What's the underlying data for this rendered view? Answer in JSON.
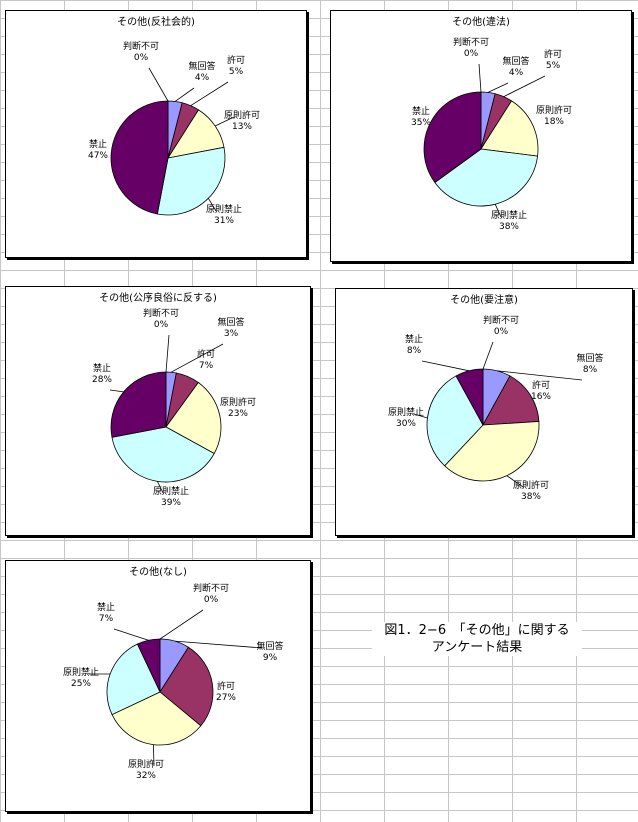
{
  "chart_data": [
    {
      "type": "pie",
      "title": "その他(反社会的)",
      "slices": [
        {
          "label": "判断不可",
          "value": 0,
          "pct": "0%"
        },
        {
          "label": "無回答",
          "value": 4,
          "pct": "4%"
        },
        {
          "label": "許可",
          "value": 5,
          "pct": "5%"
        },
        {
          "label": "原則許可",
          "value": 13,
          "pct": "13%"
        },
        {
          "label": "原則禁止",
          "value": 31,
          "pct": "31%"
        },
        {
          "label": "禁止",
          "value": 47,
          "pct": "47%"
        }
      ]
    },
    {
      "type": "pie",
      "title": "その他(違法)",
      "slices": [
        {
          "label": "判断不可",
          "value": 0,
          "pct": "0%"
        },
        {
          "label": "無回答",
          "value": 4,
          "pct": "4%"
        },
        {
          "label": "許可",
          "value": 5,
          "pct": "5%"
        },
        {
          "label": "原則許可",
          "value": 18,
          "pct": "18%"
        },
        {
          "label": "原則禁止",
          "value": 38,
          "pct": "38%"
        },
        {
          "label": "禁止",
          "value": 35,
          "pct": "35%"
        }
      ]
    },
    {
      "type": "pie",
      "title": "その他(公序良俗に反する)",
      "slices": [
        {
          "label": "判断不可",
          "value": 0,
          "pct": "0%"
        },
        {
          "label": "無回答",
          "value": 3,
          "pct": "3%"
        },
        {
          "label": "許可",
          "value": 7,
          "pct": "7%"
        },
        {
          "label": "原則許可",
          "value": 23,
          "pct": "23%"
        },
        {
          "label": "原則禁止",
          "value": 39,
          "pct": "39%"
        },
        {
          "label": "禁止",
          "value": 28,
          "pct": "28%"
        }
      ]
    },
    {
      "type": "pie",
      "title": "その他(要注意)",
      "slices": [
        {
          "label": "判断不可",
          "value": 0,
          "pct": "0%"
        },
        {
          "label": "無回答",
          "value": 8,
          "pct": "8%"
        },
        {
          "label": "許可",
          "value": 16,
          "pct": "16%"
        },
        {
          "label": "原則許可",
          "value": 38,
          "pct": "38%"
        },
        {
          "label": "原則禁止",
          "value": 30,
          "pct": "30%"
        },
        {
          "label": "禁止",
          "value": 8,
          "pct": "8%"
        }
      ]
    },
    {
      "type": "pie",
      "title": "その他(なし)",
      "slices": [
        {
          "label": "判断不可",
          "value": 0,
          "pct": "0%"
        },
        {
          "label": "無回答",
          "value": 9,
          "pct": "9%"
        },
        {
          "label": "許可",
          "value": 27,
          "pct": "27%"
        },
        {
          "label": "原則許可",
          "value": 32,
          "pct": "32%"
        },
        {
          "label": "原則禁止",
          "value": 25,
          "pct": "25%"
        },
        {
          "label": "禁止",
          "value": 7,
          "pct": "7%"
        }
      ]
    }
  ],
  "colors": [
    "#9999ff",
    "#9999ff",
    "#993366",
    "#ffffcc",
    "#ccffff",
    "#660066"
  ],
  "caption": {
    "line1": "図1．2−6　「その他」に関する",
    "line2": "アンケート結果"
  }
}
